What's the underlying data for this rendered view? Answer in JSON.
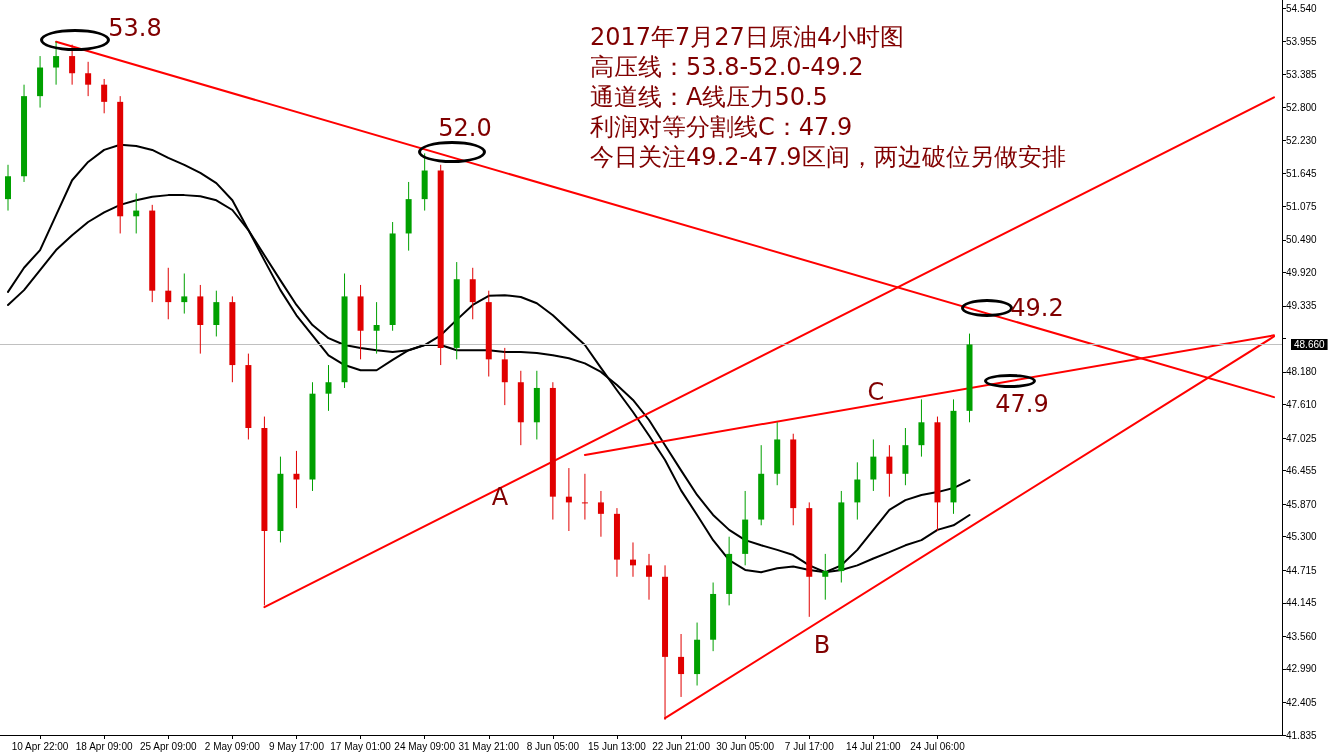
{
  "chart_data": {
    "type": "candlestick",
    "title": "2017年7月27日原油4小时图",
    "annotations": [
      "高压线：53.8-52.0-49.2",
      "通道线：A线压力50.5",
      "利润对等分割线C：47.9",
      "今日关注49.2-47.9区间，两边破位另做安排",
      "53.8",
      "52.0",
      "49.2",
      "47.9",
      "A",
      "B",
      "C"
    ],
    "categories": [
      null,
      null,
      "10 Apr 22:00",
      null,
      null,
      null,
      "18 Apr 09:00",
      null,
      null,
      null,
      "25 Apr 09:00",
      null,
      null,
      null,
      "2 May 09:00",
      null,
      null,
      null,
      "9 May 17:00",
      null,
      null,
      null,
      "17 May 01:00",
      null,
      null,
      null,
      "24 May 09:00",
      null,
      null,
      null,
      "31 May 21:00",
      null,
      null,
      null,
      "8 Jun 05:00",
      null,
      null,
      null,
      "15 Jun 13:00",
      null,
      null,
      null,
      "22 Jun 21:00",
      null,
      null,
      null,
      "30 Jun 05:00",
      null,
      null,
      null,
      "7 Jul 17:00",
      null,
      null,
      null,
      "14 Jul 21:00",
      null,
      null,
      null,
      "24 Jul 06:00",
      null,
      null,
      null,
      null,
      null,
      null,
      null,
      null,
      null,
      null,
      null,
      null,
      null,
      null,
      null,
      null,
      null,
      null,
      null,
      null,
      null
    ],
    "ohlc": [
      [
        51.2,
        51.8,
        51.0,
        51.6
      ],
      [
        51.6,
        53.2,
        51.5,
        53.0
      ],
      [
        53.0,
        53.7,
        52.8,
        53.5
      ],
      [
        53.5,
        53.95,
        53.2,
        53.7
      ],
      [
        53.7,
        53.9,
        53.2,
        53.4
      ],
      [
        53.4,
        53.6,
        53.0,
        53.2
      ],
      [
        53.2,
        53.3,
        52.7,
        52.9
      ],
      [
        52.9,
        53.0,
        50.6,
        50.9
      ],
      [
        50.9,
        51.3,
        50.6,
        51.0
      ],
      [
        51.0,
        51.1,
        49.4,
        49.6
      ],
      [
        49.6,
        50.0,
        49.1,
        49.4
      ],
      [
        49.4,
        49.9,
        49.2,
        49.5
      ],
      [
        49.5,
        49.7,
        48.5,
        49.0
      ],
      [
        49.0,
        49.6,
        48.8,
        49.4
      ],
      [
        49.4,
        49.5,
        48.0,
        48.3
      ],
      [
        48.3,
        48.5,
        47.0,
        47.2
      ],
      [
        47.2,
        47.4,
        44.1,
        45.4
      ],
      [
        45.4,
        46.7,
        45.2,
        46.4
      ],
      [
        46.4,
        46.8,
        45.8,
        46.3
      ],
      [
        46.3,
        48.0,
        46.1,
        47.8
      ],
      [
        47.8,
        48.3,
        47.5,
        48.0
      ],
      [
        48.0,
        49.9,
        47.9,
        49.5
      ],
      [
        49.5,
        49.7,
        48.4,
        48.9
      ],
      [
        48.9,
        49.4,
        48.5,
        49.0
      ],
      [
        49.0,
        50.8,
        48.9,
        50.6
      ],
      [
        50.6,
        51.5,
        50.3,
        51.2
      ],
      [
        51.2,
        52.0,
        51.0,
        51.7
      ],
      [
        51.7,
        51.8,
        48.3,
        48.6
      ],
      [
        48.6,
        50.1,
        48.4,
        49.8
      ],
      [
        49.8,
        50.0,
        49.1,
        49.4
      ],
      [
        49.4,
        49.6,
        48.1,
        48.4
      ],
      [
        48.4,
        48.6,
        47.6,
        48.0
      ],
      [
        48.0,
        48.2,
        46.9,
        47.3
      ],
      [
        47.3,
        48.2,
        47.0,
        47.9
      ],
      [
        47.9,
        48.0,
        45.6,
        46.0
      ],
      [
        46.0,
        46.5,
        45.4,
        45.9
      ],
      [
        45.9,
        46.4,
        45.6,
        45.9
      ],
      [
        45.9,
        46.1,
        45.3,
        45.7
      ],
      [
        45.7,
        45.8,
        44.6,
        44.9
      ],
      [
        44.9,
        45.2,
        44.6,
        44.8
      ],
      [
        44.8,
        45.0,
        44.2,
        44.6
      ],
      [
        44.6,
        44.8,
        42.1,
        43.2
      ],
      [
        43.2,
        43.6,
        42.5,
        42.9
      ],
      [
        42.9,
        43.8,
        42.7,
        43.5
      ],
      [
        43.5,
        44.5,
        43.3,
        44.3
      ],
      [
        44.3,
        45.3,
        44.1,
        45.0
      ],
      [
        45.0,
        46.1,
        44.8,
        45.6
      ],
      [
        45.6,
        46.9,
        45.5,
        46.4
      ],
      [
        46.4,
        47.3,
        46.2,
        47.0
      ],
      [
        47.0,
        47.1,
        45.5,
        45.8
      ],
      [
        45.8,
        45.9,
        43.9,
        44.6
      ],
      [
        44.6,
        45.0,
        44.2,
        44.7
      ],
      [
        44.7,
        46.1,
        44.5,
        45.9
      ],
      [
        45.9,
        46.6,
        45.6,
        46.3
      ],
      [
        46.3,
        47.0,
        46.1,
        46.7
      ],
      [
        46.7,
        46.9,
        46.0,
        46.4
      ],
      [
        46.4,
        47.2,
        46.2,
        46.9
      ],
      [
        46.9,
        47.7,
        46.7,
        47.3
      ],
      [
        47.3,
        47.4,
        45.4,
        45.9
      ],
      [
        45.9,
        47.7,
        45.7,
        47.5
      ],
      [
        47.5,
        48.85,
        47.3,
        48.66
      ],
      null,
      null,
      null,
      null,
      null,
      null,
      null,
      null,
      null,
      null,
      null,
      null,
      null,
      null,
      null,
      null,
      null,
      null,
      null
    ],
    "colors": [
      "#00a000",
      "#00a000",
      "#00a000",
      "#00a000",
      "#e00000",
      "#e00000",
      "#e00000",
      "#e00000",
      "#00a000",
      "#e00000",
      "#e00000",
      "#00a000",
      "#e00000",
      "#00a000",
      "#e00000",
      "#e00000",
      "#e00000",
      "#00a000",
      "#e00000",
      "#00a000",
      "#00a000",
      "#00a000",
      "#e00000",
      "#00a000",
      "#00a000",
      "#00a000",
      "#00a000",
      "#e00000",
      "#00a000",
      "#e00000",
      "#e00000",
      "#e00000",
      "#e00000",
      "#00a000",
      "#e00000",
      "#e00000",
      "#e00000",
      "#e00000",
      "#e00000",
      "#e00000",
      "#e00000",
      "#e00000",
      "#e00000",
      "#00a000",
      "#00a000",
      "#00a000",
      "#00a000",
      "#00a000",
      "#00a000",
      "#e00000",
      "#e00000",
      "#00a000",
      "#00a000",
      "#00a000",
      "#00a000",
      "#e00000",
      "#00a000",
      "#00a000",
      "#e00000",
      "#00a000",
      "#00a000",
      null,
      null,
      null,
      null,
      null,
      null,
      null,
      null,
      null,
      null,
      null,
      null,
      null,
      null,
      null,
      null,
      null,
      null,
      null
    ],
    "series": [
      {
        "type": "line",
        "color": "#000000",
        "values": [
          49.58,
          50.0,
          50.31,
          50.92,
          51.53,
          51.85,
          52.06,
          52.15,
          52.13,
          52.06,
          51.92,
          51.8,
          51.66,
          51.48,
          51.18,
          50.66,
          50.13,
          49.61,
          49.17,
          48.82,
          48.47,
          48.3,
          48.21,
          48.21,
          48.39,
          48.56,
          48.65,
          48.82,
          49.09,
          49.35,
          49.51,
          49.52,
          49.49,
          49.38,
          49.17,
          48.91,
          48.65,
          48.25,
          47.86,
          47.48,
          47.07,
          46.64,
          46.11,
          45.68,
          45.24,
          44.89,
          44.72,
          44.68,
          44.75,
          44.78,
          44.72,
          44.68,
          44.8,
          45.07,
          45.42,
          45.77,
          45.94,
          46.03,
          46.08,
          46.15,
          46.29,
          null,
          null,
          null,
          null,
          null,
          null,
          null,
          null,
          null,
          null,
          null,
          null,
          null,
          null,
          null,
          null,
          null,
          null,
          null
        ]
      },
      {
        "type": "line",
        "color": "#000000",
        "values": [
          49.35,
          49.61,
          49.96,
          50.31,
          50.57,
          50.8,
          50.97,
          51.1,
          51.18,
          51.24,
          51.27,
          51.27,
          51.25,
          51.18,
          51.01,
          50.66,
          50.22,
          49.78,
          49.35,
          49.0,
          48.77,
          48.65,
          48.6,
          48.56,
          48.53,
          48.56,
          48.65,
          48.65,
          48.56,
          48.56,
          48.56,
          48.53,
          48.53,
          48.51,
          48.47,
          48.42,
          48.33,
          48.18,
          47.95,
          47.69,
          47.34,
          46.9,
          46.46,
          46.03,
          45.68,
          45.42,
          45.24,
          45.15,
          45.07,
          44.98,
          44.8,
          44.68,
          44.72,
          44.8,
          44.92,
          45.03,
          45.15,
          45.24,
          45.42,
          45.5,
          45.68,
          null,
          null,
          null,
          null,
          null,
          null,
          null,
          null,
          null,
          null,
          null,
          null,
          null,
          null,
          null,
          null,
          null,
          null,
          null
        ]
      },
      {
        "type": "line",
        "color": "#ff0000",
        "values": [
          null,
          null,
          null,
          53.95,
          null,
          null,
          null,
          null,
          null,
          null,
          null,
          null,
          null,
          null,
          null,
          null,
          null,
          null,
          null,
          null,
          null,
          null,
          null,
          null,
          null,
          null,
          null,
          null,
          null,
          null,
          null,
          null,
          null,
          null,
          null,
          null,
          null,
          null,
          null,
          null,
          null,
          null,
          null,
          null,
          null,
          null,
          null,
          null,
          null,
          null,
          null,
          null,
          null,
          null,
          null,
          null,
          null,
          null,
          null,
          null,
          null,
          null,
          null,
          null,
          null,
          null,
          null,
          null,
          null,
          null,
          null,
          null,
          null,
          null,
          null,
          null,
          null,
          null,
          null,
          47.74
        ]
      },
      {
        "type": "line",
        "color": "#ff0000",
        "values": [
          null,
          null,
          null,
          null,
          null,
          null,
          null,
          null,
          null,
          null,
          null,
          null,
          null,
          null,
          null,
          null,
          44.07,
          null,
          null,
          null,
          null,
          null,
          null,
          null,
          null,
          null,
          null,
          null,
          null,
          null,
          null,
          null,
          null,
          null,
          null,
          null,
          null,
          null,
          null,
          null,
          null,
          null,
          null,
          null,
          null,
          null,
          null,
          null,
          null,
          null,
          null,
          null,
          null,
          null,
          null,
          null,
          null,
          null,
          null,
          null,
          null,
          null,
          null,
          null,
          null,
          null,
          null,
          null,
          null,
          null,
          null,
          null,
          null,
          null,
          null,
          null,
          null,
          null,
          null,
          52.98
        ]
      },
      {
        "type": "line",
        "color": "#ff0000",
        "values": [
          null,
          null,
          null,
          null,
          null,
          null,
          null,
          null,
          null,
          null,
          null,
          null,
          null,
          null,
          null,
          null,
          null,
          null,
          null,
          null,
          null,
          null,
          null,
          null,
          null,
          null,
          null,
          null,
          null,
          null,
          null,
          null,
          null,
          null,
          null,
          null,
          46.73,
          null,
          null,
          null,
          null,
          null,
          null,
          null,
          null,
          null,
          null,
          null,
          null,
          null,
          null,
          null,
          null,
          null,
          null,
          null,
          null,
          null,
          null,
          null,
          null,
          null,
          null,
          null,
          null,
          null,
          null,
          null,
          null,
          null,
          null,
          null,
          null,
          null,
          null,
          null,
          null,
          null,
          null,
          48.82
        ]
      },
      {
        "type": "line",
        "color": "#ff0000",
        "values": [
          null,
          null,
          null,
          null,
          null,
          null,
          null,
          null,
          null,
          null,
          null,
          null,
          null,
          null,
          null,
          null,
          null,
          null,
          null,
          null,
          null,
          null,
          null,
          null,
          null,
          null,
          null,
          null,
          null,
          null,
          null,
          null,
          null,
          null,
          null,
          null,
          null,
          null,
          null,
          null,
          null,
          42.13,
          null,
          null,
          null,
          null,
          null,
          null,
          null,
          null,
          null,
          null,
          null,
          null,
          null,
          null,
          null,
          null,
          null,
          null,
          null,
          null,
          null,
          null,
          null,
          null,
          null,
          null,
          null,
          null,
          null,
          null,
          null,
          null,
          null,
          null,
          null,
          null,
          null,
          48.8
        ]
      }
    ],
    "ylim": [
      41.835,
      54.68
    ],
    "yticks": [
      {
        "value": 54.54,
        "label": "54.540"
      },
      53.955,
      53.385,
      {
        "value": 52.8,
        "label": "52.800"
      },
      {
        "value": 52.23,
        "label": "52.230"
      },
      51.645,
      51.075,
      {
        "value": 50.49,
        "label": "50.490"
      },
      {
        "value": 49.92,
        "label": "49.920"
      },
      49.335,
      {
        "value": 48.765,
        "label": null
      },
      {
        "value": 48.18,
        "label": "48.180"
      },
      {
        "value": 47.61,
        "label": "47.610"
      },
      47.025,
      46.455,
      {
        "value": 45.87,
        "label": "45.870"
      },
      {
        "value": 45.3,
        "label": "45.300"
      },
      44.715,
      44.145,
      {
        "value": 43.56,
        "label": "43.560"
      },
      {
        "value": 42.99,
        "label": "42.990"
      },
      42.405,
      41.835
    ],
    "ref_lines": [
      {
        "axis": "y",
        "value": 48.66,
        "label": "48.660",
        "color": "#c0c0c0"
      }
    ]
  }
}
